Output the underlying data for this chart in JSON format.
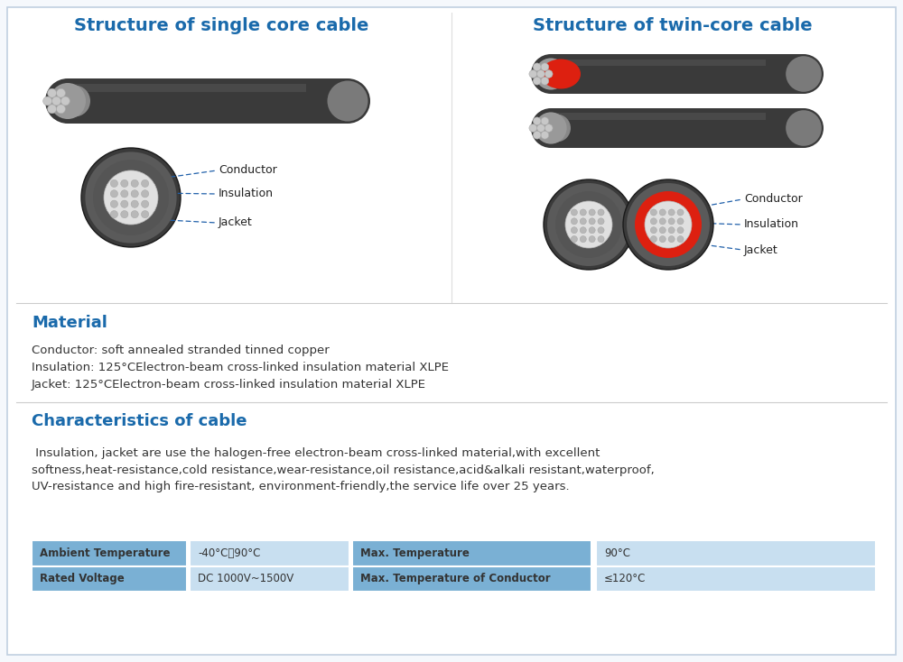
{
  "bg_color": "#f5f8fc",
  "border_color": "#c0d0e0",
  "title_left": "Structure of single core cable",
  "title_right": "Structure of twin-core cable",
  "title_color": "#1a6aab",
  "title_fontsize": 14,
  "section_material": "Material",
  "section_chars": "Characteristics of cable",
  "section_color": "#1a6aab",
  "material_lines": [
    "Conductor: soft annealed stranded tinned copper",
    "Insulation: 125°CElectron-beam cross-linked insulation material XLPE",
    "Jacket: 125°CElectron-beam cross-linked insulation material XLPE"
  ],
  "chars_text": " Insulation, jacket are use the halogen-free electron-beam cross-linked material,with excellent\nsoftness,heat-resistance,cold resistance,wear-resistance,oil resistance,acid&alkali resistant,waterproof,\nUV-resistance and high fire-resistant, environment-friendly,the service life over 25 years.",
  "table_headers_col1": [
    "Ambient Temperature",
    "Rated Voltage"
  ],
  "table_values_col1": [
    "-40°C～90°C",
    "DC 1000V~1500V"
  ],
  "table_headers_col2": [
    "Max. Temperature",
    "Max. Temperature of Conductor"
  ],
  "table_values_col2": [
    "90°C",
    "≤120°C"
  ],
  "table_header_bg": "#7ab0d4",
  "table_value_bg": "#c8dff0",
  "label_conductor": "Conductor",
  "label_insulation": "Insulation",
  "label_jacket": "Jacket",
  "label_color": "#222222",
  "dashed_color": "#2060aa",
  "cable_outer": "#3a3a3a",
  "cable_mid": "#606060",
  "cable_inner": "#909090",
  "conductor_fill": "#e0e0e0",
  "conductor_cell": "#b8b8b8",
  "conductor_cell_edge": "#a0a0a0",
  "insulation_dark": "#555555",
  "red_ins": "#dd2010",
  "tip_silver": "#c8c8c8",
  "tip_silver_edge": "#aaaaaa",
  "text_color": "#333333",
  "text_fontsize": 9.5
}
